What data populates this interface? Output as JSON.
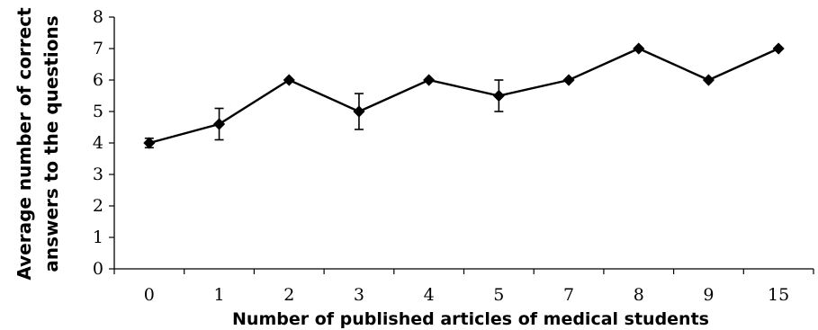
{
  "chart_data": {
    "type": "line",
    "title": "",
    "xlabel": "Number of published articles of medical students",
    "ylabel_lines": [
      "Average number of correct",
      "answers to the questions"
    ],
    "categories": [
      "0",
      "1",
      "2",
      "3",
      "4",
      "5",
      "7",
      "8",
      "9",
      "15"
    ],
    "series": [
      {
        "values": [
          4.0,
          4.6,
          6.0,
          5.0,
          6.0,
          5.5,
          6.0,
          7.0,
          6.0,
          7.0
        ],
        "error": [
          0.15,
          0.5,
          0,
          0.57,
          0,
          0.5,
          0,
          0,
          0,
          0
        ]
      }
    ],
    "yticks": [
      "0",
      "1",
      "2",
      "3",
      "4",
      "5",
      "6",
      "7",
      "8"
    ],
    "ylim": [
      0,
      8
    ],
    "grid": false,
    "legend": "none",
    "colors": {
      "line": "#000000",
      "marker": "#000000",
      "axis": "#000000"
    }
  }
}
